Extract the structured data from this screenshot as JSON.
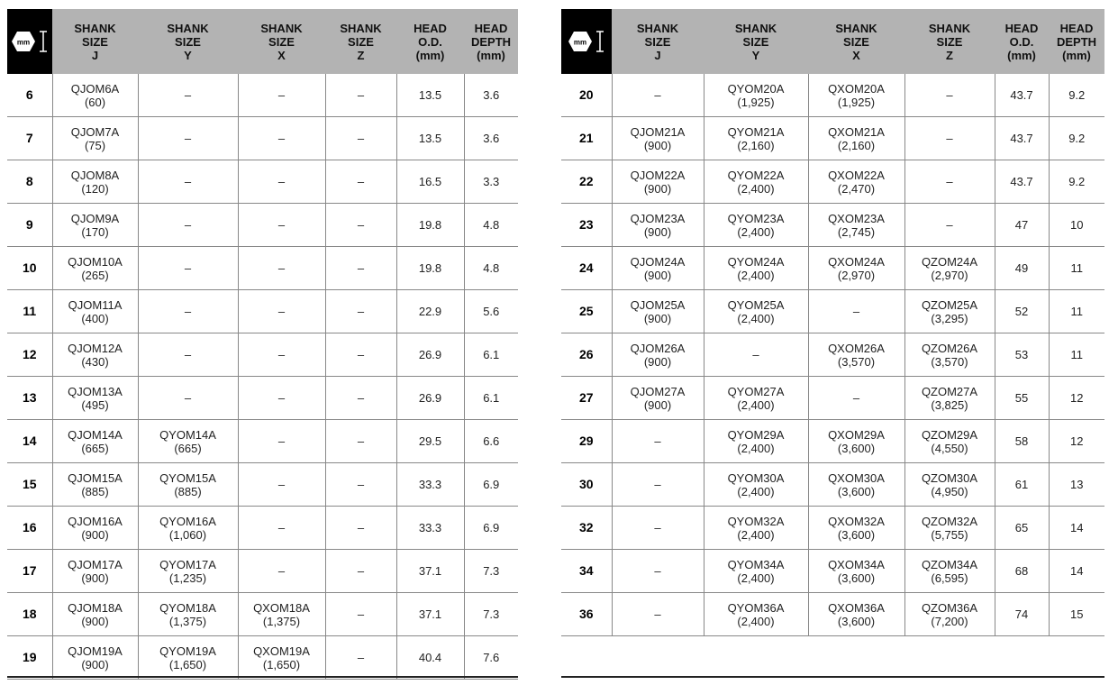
{
  "icon_text": "mm",
  "headers": [
    "SHANK\nSIZE\nJ",
    "SHANK\nSIZE\nY",
    "SHANK\nSIZE\nX",
    "SHANK\nSIZE\nZ",
    "HEAD\nO.D.\n(mm)",
    "HEAD\nDEPTH\n(mm)"
  ],
  "left_rows": [
    [
      "6",
      "QJOM6A\n(60)",
      "–",
      "–",
      "–",
      "13.5",
      "3.6"
    ],
    [
      "7",
      "QJOM7A\n(75)",
      "–",
      "–",
      "–",
      "13.5",
      "3.6"
    ],
    [
      "8",
      "QJOM8A\n(120)",
      "–",
      "–",
      "–",
      "16.5",
      "3.3"
    ],
    [
      "9",
      "QJOM9A\n(170)",
      "–",
      "–",
      "–",
      "19.8",
      "4.8"
    ],
    [
      "10",
      "QJOM10A\n(265)",
      "–",
      "–",
      "–",
      "19.8",
      "4.8"
    ],
    [
      "11",
      "QJOM11A\n(400)",
      "–",
      "–",
      "–",
      "22.9",
      "5.6"
    ],
    [
      "12",
      "QJOM12A\n(430)",
      "–",
      "–",
      "–",
      "26.9",
      "6.1"
    ],
    [
      "13",
      "QJOM13A\n(495)",
      "–",
      "–",
      "–",
      "26.9",
      "6.1"
    ],
    [
      "14",
      "QJOM14A\n(665)",
      "QYOM14A\n(665)",
      "–",
      "–",
      "29.5",
      "6.6"
    ],
    [
      "15",
      "QJOM15A\n(885)",
      "QYOM15A\n(885)",
      "–",
      "–",
      "33.3",
      "6.9"
    ],
    [
      "16",
      "QJOM16A\n(900)",
      "QYOM16A\n(1,060)",
      "–",
      "–",
      "33.3",
      "6.9"
    ],
    [
      "17",
      "QJOM17A\n(900)",
      "QYOM17A\n(1,235)",
      "–",
      "–",
      "37.1",
      "7.3"
    ],
    [
      "18",
      "QJOM18A\n(900)",
      "QYOM18A\n(1,375)",
      "QXOM18A\n(1,375)",
      "–",
      "37.1",
      "7.3"
    ],
    [
      "19",
      "QJOM19A\n(900)",
      "QYOM19A\n(1,650)",
      "QXOM19A\n(1,650)",
      "–",
      "40.4",
      "7.6"
    ]
  ],
  "right_rows": [
    [
      "20",
      "–",
      "QYOM20A\n(1,925)",
      "QXOM20A\n(1,925)",
      "–",
      "43.7",
      "9.2"
    ],
    [
      "21",
      "QJOM21A\n(900)",
      "QYOM21A\n(2,160)",
      "QXOM21A\n(2,160)",
      "–",
      "43.7",
      "9.2"
    ],
    [
      "22",
      "QJOM22A\n(900)",
      "QYOM22A\n(2,400)",
      "QXOM22A\n(2,470)",
      "–",
      "43.7",
      "9.2"
    ],
    [
      "23",
      "QJOM23A\n(900)",
      "QYOM23A\n(2,400)",
      "QXOM23A\n(2,745)",
      "–",
      "47",
      "10"
    ],
    [
      "24",
      "QJOM24A\n(900)",
      "QYOM24A\n(2,400)",
      "QXOM24A\n(2,970)",
      "QZOM24A\n(2,970)",
      "49",
      "11"
    ],
    [
      "25",
      "QJOM25A\n(900)",
      "QYOM25A\n(2,400)",
      "–",
      "QZOM25A\n(3,295)",
      "52",
      "11"
    ],
    [
      "26",
      "QJOM26A\n(900)",
      "–",
      "QXOM26A\n(3,570)",
      "QZOM26A\n(3,570)",
      "53",
      "11"
    ],
    [
      "27",
      "QJOM27A\n(900)",
      "QYOM27A\n(2,400)",
      "–",
      "QZOM27A\n(3,825)",
      "55",
      "12"
    ],
    [
      "29",
      "–",
      "QYOM29A\n(2,400)",
      "QXOM29A\n(3,600)",
      "QZOM29A\n(4,550)",
      "58",
      "12"
    ],
    [
      "30",
      "–",
      "QYOM30A\n(2,400)",
      "QXOM30A\n(3,600)",
      "QZOM30A\n(4,950)",
      "61",
      "13"
    ],
    [
      "32",
      "–",
      "QYOM32A\n(2,400)",
      "QXOM32A\n(3,600)",
      "QZOM32A\n(5,755)",
      "65",
      "14"
    ],
    [
      "34",
      "–",
      "QYOM34A\n(2,400)",
      "QXOM34A\n(3,600)",
      "QZOM34A\n(6,595)",
      "68",
      "14"
    ],
    [
      "36",
      "–",
      "QYOM36A\n(2,400)",
      "QXOM36A\n(3,600)",
      "QZOM36A\n(7,200)",
      "74",
      "15"
    ]
  ]
}
